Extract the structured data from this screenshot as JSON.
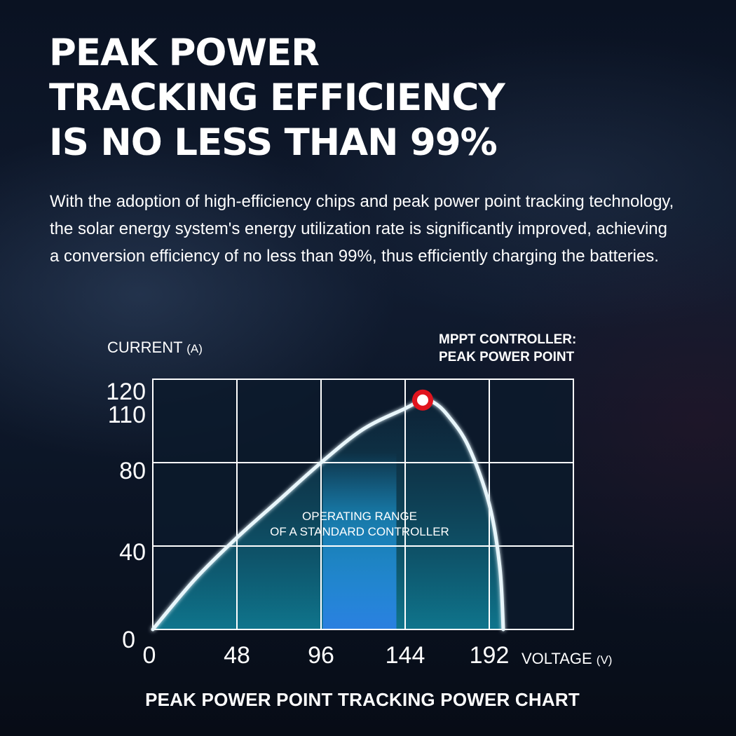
{
  "headline": "PEAK POWER\nTRACKING EFFICIENCY\nIS NO LESS THAN 99%",
  "description": "With the adoption of high-efficiency chips and peak power point tracking technology, the solar energy system's energy utilization rate is significantly improved, achieving a conversion efficiency of no less than 99%, thus efficiently charging the batteries.",
  "colors": {
    "background": "#0b1527",
    "grid": "#ffffff",
    "curve": "#e8f6fb",
    "fill_top": "#0f2a3f",
    "fill_bottom": "#0f7a92",
    "operating_band": "#1fa3e6",
    "peak_marker": "#e0141e"
  },
  "chart_data": {
    "type": "line",
    "title": "PEAK POWER POINT TRACKING POWER CHART",
    "ylabel": {
      "main": "CURRENT",
      "unit": "(A)"
    },
    "xlabel": {
      "main": "VOLTAGE",
      "unit": "(V)"
    },
    "x_ticks": [
      0,
      48,
      96,
      144,
      192
    ],
    "y_ticks": [
      0,
      40,
      80,
      110,
      120
    ],
    "y_gridlines": [
      40,
      80,
      120
    ],
    "xlim": [
      0,
      240
    ],
    "ylim": [
      0,
      120
    ],
    "grid": true,
    "series": [
      {
        "points": [
          [
            0,
            0
          ],
          [
            24,
            24
          ],
          [
            48,
            44
          ],
          [
            72,
            62
          ],
          [
            96,
            80
          ],
          [
            120,
            96
          ],
          [
            144,
            106
          ],
          [
            154,
            110
          ],
          [
            160,
            109
          ],
          [
            168,
            103
          ],
          [
            180,
            88
          ],
          [
            192,
            60
          ],
          [
            198,
            30
          ],
          [
            200,
            0
          ]
        ]
      }
    ],
    "operating_range": {
      "x": [
        97,
        139
      ],
      "label": [
        "OPERATING RANGE",
        "OF A STANDARD CONTROLLER"
      ]
    },
    "peak_point": {
      "x": 154,
      "y": 110,
      "label": [
        "MPPT CONTROLLER:",
        "PEAK POWER POINT"
      ]
    }
  }
}
